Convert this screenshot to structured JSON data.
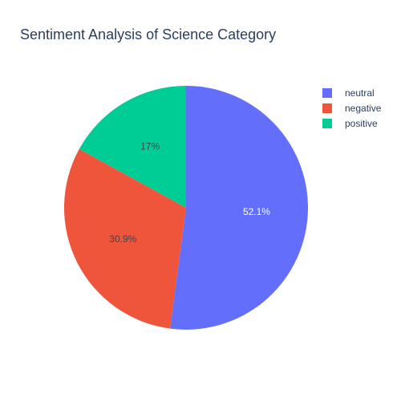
{
  "chart_data": {
    "type": "pie",
    "title": "Sentiment Analysis of Science Category",
    "labels": [
      "neutral",
      "negative",
      "positive"
    ],
    "values": [
      52.1,
      30.9,
      17
    ],
    "display_labels": [
      "52.1%",
      "30.9%",
      "17%"
    ],
    "colors": [
      "#636efa",
      "#ef553b",
      "#00cc96"
    ],
    "label_colors": [
      "#ffffff",
      "#444444",
      "#444444"
    ],
    "legend_position": "top-right",
    "start_angle_deg": 90,
    "direction": "clockwise"
  }
}
